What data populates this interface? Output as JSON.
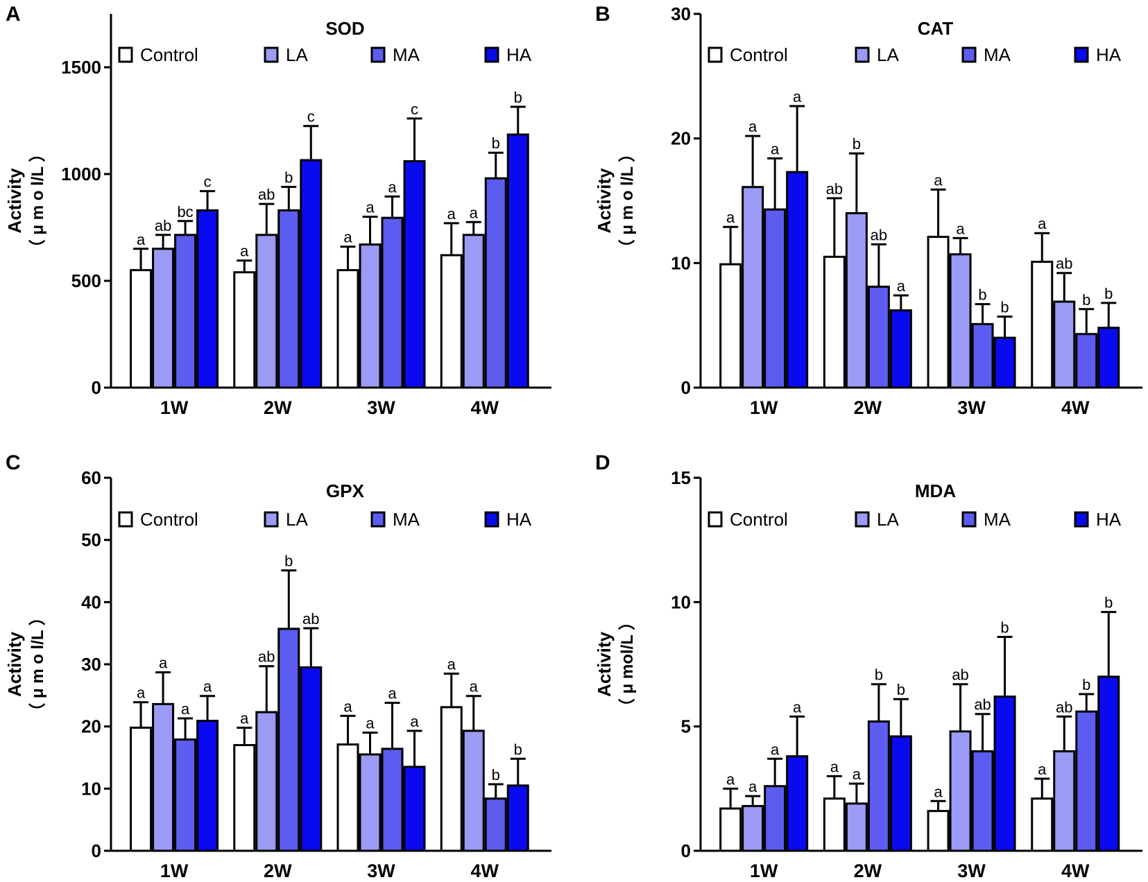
{
  "colors": {
    "Control": "#ffffff",
    "LA": "#9b9bf5",
    "MA": "#5c5cf0",
    "HA": "#0a0af0",
    "axis": "#000000"
  },
  "chart_data": [
    {
      "panel": "A",
      "type": "bar",
      "title": "SOD",
      "ylabel_line1": "Activity",
      "ylabel_line2": "（ μ m o l/L ）",
      "xlabel": "",
      "categories": [
        "1W",
        "2W",
        "3W",
        "4W"
      ],
      "ylim": [
        0,
        1750
      ],
      "yticks": [
        0,
        500,
        1000,
        1500
      ],
      "legend_position": "top",
      "series": [
        {
          "name": "Control",
          "values": [
            550,
            540,
            550,
            620
          ],
          "errors": [
            100,
            55,
            110,
            150
          ],
          "letters": [
            "a",
            "a",
            "a",
            "a"
          ]
        },
        {
          "name": "LA",
          "values": [
            650,
            715,
            670,
            715
          ],
          "errors": [
            65,
            145,
            130,
            60
          ],
          "letters": [
            "ab",
            "ab",
            "a",
            "a"
          ]
        },
        {
          "name": "MA",
          "values": [
            715,
            830,
            795,
            980
          ],
          "errors": [
            65,
            110,
            100,
            120
          ],
          "letters": [
            "bc",
            "b",
            "a",
            "b"
          ]
        },
        {
          "name": "HA",
          "values": [
            830,
            1065,
            1060,
            1185
          ],
          "errors": [
            90,
            160,
            200,
            130
          ],
          "letters": [
            "c",
            "c",
            "c",
            "b"
          ]
        }
      ]
    },
    {
      "panel": "B",
      "type": "bar",
      "title": "CAT",
      "ylabel_line1": "Activity",
      "ylabel_line2": "（ μ m o l/L ）",
      "xlabel": "",
      "categories": [
        "1W",
        "2W",
        "3W",
        "4W"
      ],
      "ylim": [
        0,
        30
      ],
      "yticks": [
        0,
        10,
        20,
        30
      ],
      "legend_position": "top",
      "series": [
        {
          "name": "Control",
          "values": [
            9.9,
            10.5,
            12.1,
            10.1
          ],
          "errors": [
            3.0,
            4.7,
            3.8,
            2.3
          ],
          "letters": [
            "a",
            "ab",
            "a",
            "a"
          ]
        },
        {
          "name": "LA",
          "values": [
            16.1,
            14.0,
            10.7,
            6.9
          ],
          "errors": [
            4.1,
            4.8,
            1.3,
            2.3
          ],
          "letters": [
            "a",
            "b",
            "a",
            "ab"
          ]
        },
        {
          "name": "MA",
          "values": [
            14.3,
            8.1,
            5.1,
            4.3
          ],
          "errors": [
            4.1,
            3.4,
            1.6,
            2.0
          ],
          "letters": [
            "a",
            "ab",
            "b",
            "b"
          ]
        },
        {
          "name": "HA",
          "values": [
            17.3,
            6.2,
            4.0,
            4.8
          ],
          "errors": [
            5.3,
            1.2,
            1.7,
            2.0
          ],
          "letters": [
            "a",
            "a",
            "b",
            "b"
          ]
        }
      ]
    },
    {
      "panel": "C",
      "type": "bar",
      "title": "GPX",
      "ylabel_line1": "Activity",
      "ylabel_line2": "（ μ m o l/L ）",
      "xlabel": "",
      "categories": [
        "1W",
        "2W",
        "3W",
        "4W"
      ],
      "ylim": [
        0,
        60
      ],
      "yticks": [
        0,
        10,
        20,
        30,
        40,
        50,
        60
      ],
      "legend_position": "top",
      "series": [
        {
          "name": "Control",
          "values": [
            19.8,
            17.0,
            17.1,
            23.1
          ],
          "errors": [
            4.1,
            2.8,
            4.6,
            5.4
          ],
          "letters": [
            "a",
            "a",
            "a",
            "a"
          ]
        },
        {
          "name": "LA",
          "values": [
            23.6,
            22.3,
            15.5,
            19.3
          ],
          "errors": [
            5.1,
            7.4,
            3.5,
            5.6
          ],
          "letters": [
            "a",
            "ab",
            "a",
            "a"
          ]
        },
        {
          "name": "MA",
          "values": [
            17.9,
            35.7,
            16.4,
            8.4
          ],
          "errors": [
            3.4,
            9.4,
            7.4,
            2.3
          ],
          "letters": [
            "a",
            "b",
            "a",
            "b"
          ]
        },
        {
          "name": "HA",
          "values": [
            20.9,
            29.5,
            13.5,
            10.5
          ],
          "errors": [
            4.0,
            6.3,
            5.8,
            4.3
          ],
          "letters": [
            "a",
            "ab",
            "a",
            "b"
          ]
        }
      ]
    },
    {
      "panel": "D",
      "type": "bar",
      "title": "MDA",
      "ylabel_line1": "Activity",
      "ylabel_line2": "（ μ mol/L ）",
      "xlabel": "",
      "categories": [
        "1W",
        "2W",
        "3W",
        "4W"
      ],
      "ylim": [
        0,
        15
      ],
      "yticks": [
        0,
        5,
        10,
        15
      ],
      "legend_position": "top",
      "series": [
        {
          "name": "Control",
          "values": [
            1.7,
            2.1,
            1.6,
            2.1
          ],
          "errors": [
            0.8,
            0.9,
            0.4,
            0.8
          ],
          "letters": [
            "a",
            "a",
            "a",
            "a"
          ]
        },
        {
          "name": "LA",
          "values": [
            1.8,
            1.9,
            4.8,
            4.0
          ],
          "errors": [
            0.4,
            0.8,
            1.9,
            1.4
          ],
          "letters": [
            "a",
            "a",
            "ab",
            "ab"
          ]
        },
        {
          "name": "MA",
          "values": [
            2.6,
            5.2,
            4.0,
            5.6
          ],
          "errors": [
            1.1,
            1.5,
            1.5,
            0.7
          ],
          "letters": [
            "a",
            "b",
            "ab",
            "b"
          ]
        },
        {
          "name": "HA",
          "values": [
            3.8,
            4.6,
            6.2,
            7.0
          ],
          "errors": [
            1.6,
            1.5,
            2.4,
            2.6
          ],
          "letters": [
            "a",
            "b",
            "b",
            "b"
          ]
        }
      ]
    }
  ]
}
